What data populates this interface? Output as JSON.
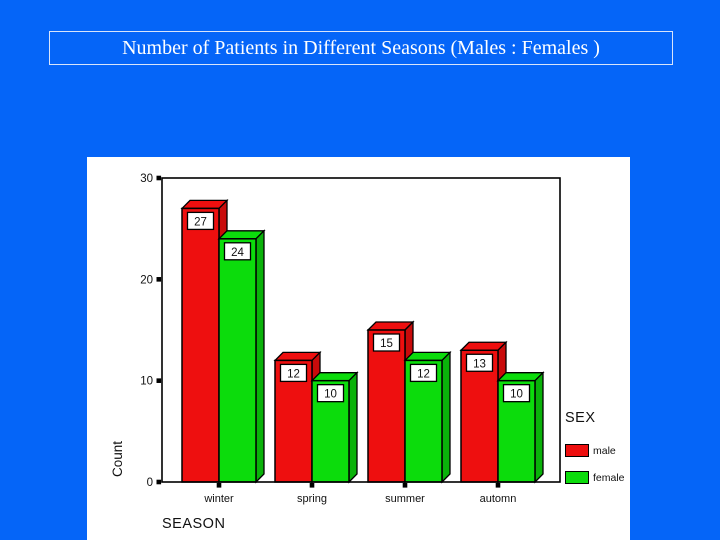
{
  "slide": {
    "title": "Number of Patients in Different Seasons (Males : Females )"
  },
  "colors": {
    "background": "#0565f8",
    "title_text": "#ffffff",
    "title_border": "#d9e4fb",
    "panel": "#ffffff",
    "axis": "#000000",
    "male_bar": "#ee0f0f",
    "male_bar_side": "#c90b0b",
    "female_bar": "#0cdc0c",
    "female_bar_side": "#0ab20a"
  },
  "chart_data": {
    "type": "bar",
    "style": "3d-effect",
    "categories": [
      "winter",
      "spring",
      "summer",
      "automn"
    ],
    "series": [
      {
        "name": "male",
        "color": "#ee0f0f",
        "side_color": "#c90b0b",
        "values": [
          27,
          12,
          15,
          13
        ]
      },
      {
        "name": "female",
        "color": "#0cdc0c",
        "side_color": "#0ab20a",
        "values": [
          24,
          10,
          12,
          10
        ]
      }
    ],
    "bar_labels_shown": true,
    "xlabel": "SEASON",
    "ylabel": "Count",
    "ylim": [
      0,
      30
    ],
    "yticks": [
      0,
      10,
      20,
      30
    ],
    "grid": false,
    "legend_title": "SEX",
    "legend_position": "right"
  }
}
